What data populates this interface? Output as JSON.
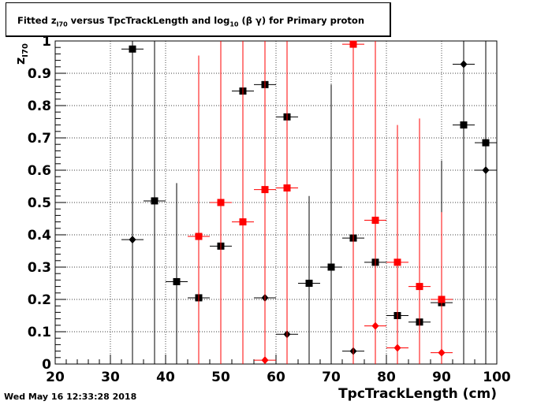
{
  "title": {
    "prefix": "Fitted  z",
    "sub": "I70",
    "middle": "  versus TpcTrackLength and log",
    "sub2": "10",
    "suffix": " (β γ) for Primary proton"
  },
  "timestamp": "Wed May 16 12:33:28 2018",
  "chart_data": {
    "type": "scatter",
    "title": "Fitted z_I70 versus TpcTrackLength and log10 (β γ) for Primary proton",
    "xlabel": "TpcTrackLength (cm)",
    "ylabel": "z_I70",
    "xlim": [
      20,
      100
    ],
    "ylim": [
      0,
      1
    ],
    "xticks": [
      20,
      30,
      40,
      50,
      60,
      70,
      80,
      90,
      100
    ],
    "yticks": [
      0,
      0.1,
      0.2,
      0.3,
      0.4,
      0.5,
      0.6,
      0.7,
      0.8,
      0.9,
      1
    ],
    "ytick_labels": [
      "0",
      "0.1",
      "0.2",
      "0.3",
      "0.4",
      "0.5",
      "0.6",
      "0.7",
      "0.8",
      "0.9",
      "1"
    ],
    "grid": true,
    "colors": {
      "black": "#000000",
      "red": "#ff0000"
    },
    "series": [
      {
        "color": "#000000",
        "marker": "square",
        "points": [
          {
            "x": 34,
            "y": 0.975,
            "xerr": 2,
            "ylo": 0,
            "yhi": 1
          },
          {
            "x": 38,
            "y": 0.505,
            "xerr": 2,
            "ylo": 0,
            "yhi": 1
          },
          {
            "x": 42,
            "y": 0.255,
            "xerr": 2,
            "ylo": 0,
            "yhi": 0.56
          },
          {
            "x": 46,
            "y": 0.205,
            "xerr": 2,
            "ylo": 0,
            "yhi": 0.205
          },
          {
            "x": 50,
            "y": 0.365,
            "xerr": 2,
            "ylo": 0,
            "yhi": 0.365
          },
          {
            "x": 54,
            "y": 0.845,
            "xerr": 2,
            "ylo": 0,
            "yhi": 0.845
          },
          {
            "x": 58,
            "y": 0.865,
            "xerr": 2,
            "ylo": 0,
            "yhi": 0.865
          },
          {
            "x": 62,
            "y": 0.765,
            "xerr": 2,
            "ylo": 0,
            "yhi": 0.765
          },
          {
            "x": 66,
            "y": 0.25,
            "xerr": 2,
            "ylo": 0,
            "yhi": 0.52
          },
          {
            "x": 70,
            "y": 0.3,
            "xerr": 2,
            "ylo": 0,
            "yhi": 0.865
          },
          {
            "x": 74,
            "y": 0.39,
            "xerr": 2,
            "ylo": 0,
            "yhi": 0.39
          },
          {
            "x": 78,
            "y": 0.315,
            "xerr": 2,
            "ylo": 0,
            "yhi": 0.315
          },
          {
            "x": 82,
            "y": 0.15,
            "xerr": 2,
            "ylo": 0,
            "yhi": 0.15
          },
          {
            "x": 86,
            "y": 0.13,
            "xerr": 2,
            "ylo": 0,
            "yhi": 0.13
          },
          {
            "x": 90,
            "y": 0.19,
            "xerr": 2,
            "ylo": 0,
            "yhi": 0.63
          },
          {
            "x": 94,
            "y": 0.74,
            "xerr": 2,
            "ylo": 0,
            "yhi": 1
          },
          {
            "x": 98,
            "y": 0.685,
            "xerr": 2,
            "ylo": 0,
            "yhi": 1
          }
        ]
      },
      {
        "color": "#000000",
        "marker": "diamond",
        "points": [
          {
            "x": 34,
            "y": 0.385,
            "xerr": 2,
            "ylo": 0.385,
            "yhi": 0.385
          },
          {
            "x": 58,
            "y": 0.205,
            "xerr": 2,
            "ylo": 0.205,
            "yhi": 0.205
          },
          {
            "x": 62,
            "y": 0.092,
            "xerr": 2,
            "ylo": 0.092,
            "yhi": 0.092
          },
          {
            "x": 74,
            "y": 0.04,
            "xerr": 2,
            "ylo": 0.04,
            "yhi": 0.04
          },
          {
            "x": 94,
            "y": 0.928,
            "xerr": 2,
            "ylo": 0.928,
            "yhi": 0.928
          },
          {
            "x": 98,
            "y": 0.6,
            "xerr": 2,
            "ylo": 0.6,
            "yhi": 0.6
          }
        ]
      },
      {
        "color": "#ff0000",
        "marker": "square",
        "points": [
          {
            "x": 46,
            "y": 0.395,
            "xerr": 2,
            "ylo": 0,
            "yhi": 0.955
          },
          {
            "x": 50,
            "y": 0.5,
            "xerr": 2,
            "ylo": 0,
            "yhi": 1
          },
          {
            "x": 54,
            "y": 0.44,
            "xerr": 2,
            "ylo": 0,
            "yhi": 1
          },
          {
            "x": 58,
            "y": 0.54,
            "xerr": 2,
            "ylo": 0,
            "yhi": 1
          },
          {
            "x": 62,
            "y": 0.545,
            "xerr": 2,
            "ylo": 0,
            "yhi": 1
          },
          {
            "x": 74,
            "y": 0.99,
            "xerr": 2,
            "ylo": 0,
            "yhi": 1
          },
          {
            "x": 78,
            "y": 0.445,
            "xerr": 2,
            "ylo": 0,
            "yhi": 1
          },
          {
            "x": 82,
            "y": 0.315,
            "xerr": 2,
            "ylo": 0,
            "yhi": 0.74
          },
          {
            "x": 86,
            "y": 0.24,
            "xerr": 2,
            "ylo": 0,
            "yhi": 0.76
          },
          {
            "x": 90,
            "y": 0.2,
            "xerr": 2,
            "ylo": 0,
            "yhi": 0.47
          }
        ]
      },
      {
        "color": "#ff0000",
        "marker": "diamond",
        "points": [
          {
            "x": 58,
            "y": 0.012,
            "xerr": 2,
            "ylo": 0.012,
            "yhi": 0.012
          },
          {
            "x": 78,
            "y": 0.118,
            "xerr": 2,
            "ylo": 0.118,
            "yhi": 0.118
          },
          {
            "x": 82,
            "y": 0.05,
            "xerr": 2,
            "ylo": 0.05,
            "yhi": 0.05
          },
          {
            "x": 90,
            "y": 0.035,
            "xerr": 2,
            "ylo": 0.035,
            "yhi": 0.035
          }
        ]
      }
    ]
  }
}
